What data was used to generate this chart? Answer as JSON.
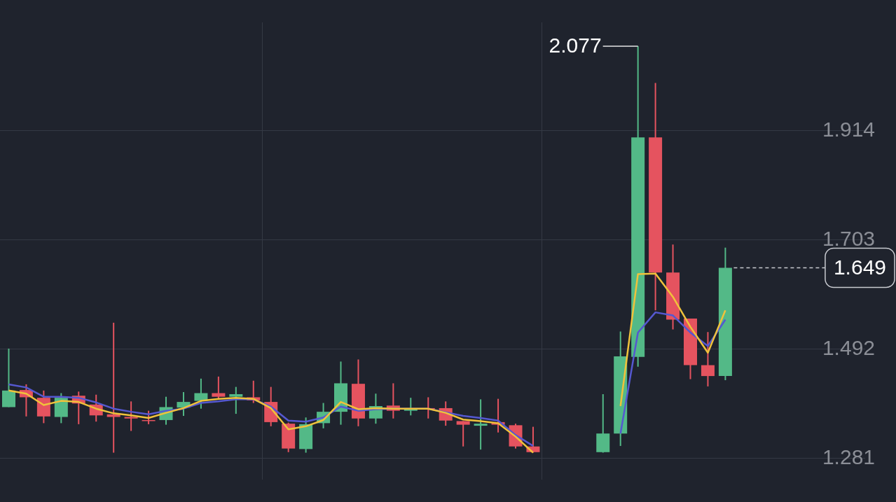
{
  "chart_data": {
    "type": "candlestick",
    "categories": [
      null,
      null,
      null,
      null,
      null,
      null,
      null,
      null,
      null,
      null,
      null,
      null,
      null,
      null,
      null,
      null,
      null,
      null,
      null,
      null,
      null,
      null,
      null,
      null,
      null,
      null,
      null,
      null,
      null,
      null,
      null,
      null,
      null,
      null,
      null,
      null,
      null,
      null,
      null,
      null,
      null,
      null
    ],
    "ohlc": [
      [
        1.38,
        1.493,
        1.38,
        1.412
      ],
      [
        1.413,
        1.424,
        1.362,
        1.399
      ],
      [
        1.398,
        1.412,
        1.349,
        1.362
      ],
      [
        1.361,
        1.407,
        1.349,
        1.398
      ],
      [
        1.402,
        1.41,
        1.347,
        1.387
      ],
      [
        1.385,
        1.404,
        1.352,
        1.364
      ],
      [
        1.366,
        1.543,
        1.292,
        1.361
      ],
      [
        1.361,
        1.391,
        1.334,
        1.358
      ],
      [
        1.355,
        1.373,
        1.347,
        1.353
      ],
      [
        1.355,
        1.4,
        1.346,
        1.38
      ],
      [
        1.379,
        1.409,
        1.363,
        1.39
      ],
      [
        1.392,
        1.435,
        1.377,
        1.407
      ],
      [
        1.407,
        1.439,
        1.396,
        1.4
      ],
      [
        1.4,
        1.419,
        1.367,
        1.405
      ],
      [
        1.399,
        1.431,
        1.388,
        1.393
      ],
      [
        1.39,
        1.419,
        1.343,
        1.351
      ],
      [
        1.348,
        1.35,
        1.293,
        1.3
      ],
      [
        1.299,
        1.36,
        1.292,
        1.347
      ],
      [
        1.349,
        1.388,
        1.339,
        1.371
      ],
      [
        1.371,
        1.468,
        1.346,
        1.426
      ],
      [
        1.425,
        1.472,
        1.343,
        1.358
      ],
      [
        1.358,
        1.406,
        1.348,
        1.382
      ],
      [
        1.383,
        1.426,
        1.358,
        1.373
      ],
      [
        1.373,
        1.398,
        1.364,
        1.378
      ],
      [
        1.378,
        1.399,
        1.358,
        1.376
      ],
      [
        1.378,
        1.391,
        1.344,
        1.354
      ],
      [
        1.353,
        1.353,
        1.304,
        1.346
      ],
      [
        1.344,
        1.395,
        1.298,
        1.348
      ],
      [
        1.351,
        1.396,
        1.331,
        1.346
      ],
      [
        1.345,
        1.348,
        1.3,
        1.304
      ],
      [
        1.304,
        1.342,
        1.292,
        1.293
      ],
      null,
      null,
      null,
      [
        1.293,
        1.405,
        1.292,
        1.329
      ],
      [
        1.329,
        1.526,
        1.305,
        1.478
      ],
      [
        1.477,
        2.077,
        1.458,
        1.901
      ],
      [
        1.901,
        2.006,
        1.567,
        1.64
      ],
      [
        1.64,
        1.694,
        1.53,
        1.549
      ],
      [
        1.551,
        1.551,
        1.434,
        1.461
      ],
      [
        1.461,
        1.525,
        1.42,
        1.44
      ],
      [
        1.44,
        1.688,
        1.432,
        1.649
      ]
    ],
    "colors": [
      "#53b987",
      "#e5535f",
      "#e5535f",
      "#53b987",
      "#e5535f",
      "#e5535f",
      "#e5535f",
      "#e5535f",
      "#e5535f",
      "#53b987",
      "#53b987",
      "#53b987",
      "#e5535f",
      "#53b987",
      "#e5535f",
      "#e5535f",
      "#e5535f",
      "#53b987",
      "#53b987",
      "#53b987",
      "#e5535f",
      "#53b987",
      "#e5535f",
      "#53b987",
      "#e5535f",
      "#e5535f",
      "#e5535f",
      "#53b987",
      "#e5535f",
      "#e5535f",
      "#e5535f",
      null,
      null,
      null,
      "#53b987",
      "#53b987",
      "#53b987",
      "#e5535f",
      "#e5535f",
      "#e5535f",
      "#e5535f",
      "#53b987"
    ],
    "series": [
      {
        "type": "line",
        "color": "#f0c23b",
        "values": [
          1.412,
          1.406,
          1.384,
          1.392,
          1.39,
          1.377,
          1.368,
          1.364,
          1.359,
          1.369,
          1.378,
          1.392,
          1.396,
          1.398,
          1.396,
          1.378,
          1.337,
          1.343,
          1.355,
          1.39,
          1.376,
          1.378,
          1.377,
          1.377,
          1.377,
          1.369,
          1.356,
          1.353,
          1.349,
          1.323,
          1.292,
          null,
          null,
          null,
          null,
          1.382,
          1.637,
          1.638,
          1.593,
          1.535,
          1.485,
          1.567
        ]
      },
      {
        "type": "line",
        "color": "#5558d0",
        "values": [
          1.424,
          1.418,
          1.4,
          1.4,
          1.398,
          1.389,
          1.377,
          1.371,
          1.366,
          1.373,
          1.377,
          1.388,
          1.391,
          1.395,
          1.395,
          1.381,
          1.354,
          1.352,
          1.36,
          1.381,
          1.373,
          1.376,
          1.377,
          1.377,
          1.377,
          1.37,
          1.363,
          1.359,
          1.354,
          1.326,
          1.305,
          null,
          null,
          null,
          null,
          1.329,
          1.524,
          1.563,
          1.557,
          1.524,
          1.498,
          1.549
        ]
      }
    ],
    "ylim": [
      1.24,
      2.123
    ],
    "yticks": [
      1.281,
      1.492,
      1.703,
      1.914
    ],
    "grid": true,
    "tick_labels": "y",
    "legend": false,
    "annotations": [
      "2.077"
    ],
    "ref_lines": [
      {
        "axis": "y",
        "value": 1.649,
        "label": "1.649",
        "line_style": "dashed"
      }
    ]
  }
}
